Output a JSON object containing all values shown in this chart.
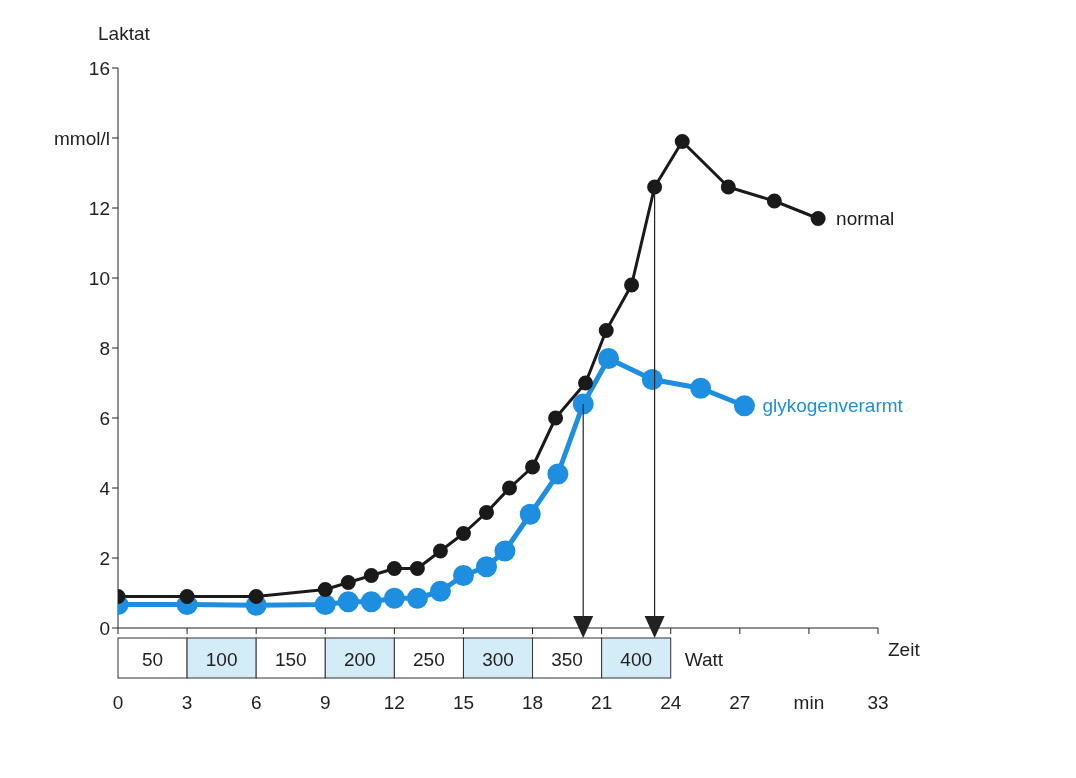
{
  "chart_data": {
    "type": "line",
    "ylabel": "Laktat",
    "xlabel": "Zeit",
    "xlim": [
      0,
      33
    ],
    "xticks": [
      0,
      3,
      6,
      9,
      12,
      15,
      18,
      21,
      24,
      27,
      {
        "value": 30,
        "label": "min"
      },
      33
    ],
    "ylim": [
      0,
      16
    ],
    "yticks": [
      0,
      2,
      4,
      6,
      8,
      10,
      12,
      {
        "value": 14,
        "label": "mmol/l"
      },
      16
    ],
    "series": [
      {
        "name": "normal",
        "color": "#1a1a1a",
        "x": [
          0,
          3,
          6,
          9,
          10,
          11,
          12,
          13,
          14,
          15,
          16,
          17,
          18,
          19,
          20.3,
          21.2,
          22.3,
          23.3,
          24.5,
          26.5,
          28.5,
          30.4
        ],
        "values": [
          0.9,
          0.9,
          0.9,
          1.1,
          1.3,
          1.5,
          1.7,
          1.7,
          2.2,
          2.7,
          3.3,
          4.0,
          4.6,
          6.0,
          7.0,
          8.5,
          9.8,
          12.6,
          13.9,
          12.6,
          12.2,
          11.7
        ]
      },
      {
        "name": "glykogenverarmt",
        "color": "#1e8fe0",
        "x": [
          0,
          3,
          6,
          9,
          10,
          11,
          12,
          13,
          14,
          15,
          16,
          16.8,
          17.9,
          19.1,
          20.2,
          21.3,
          23.2,
          25.3,
          27.2
        ],
        "values": [
          0.67,
          0.67,
          0.65,
          0.67,
          0.75,
          0.75,
          0.85,
          0.85,
          1.05,
          1.5,
          1.75,
          2.2,
          3.25,
          4.4,
          6.4,
          7.7,
          7.1,
          6.85,
          6.35
        ]
      }
    ],
    "annotations": [
      "50",
      "100",
      "150",
      "200",
      "250",
      "300",
      "350",
      "400",
      "Watt"
    ],
    "marker": "circle",
    "legend": false,
    "grid": false
  }
}
